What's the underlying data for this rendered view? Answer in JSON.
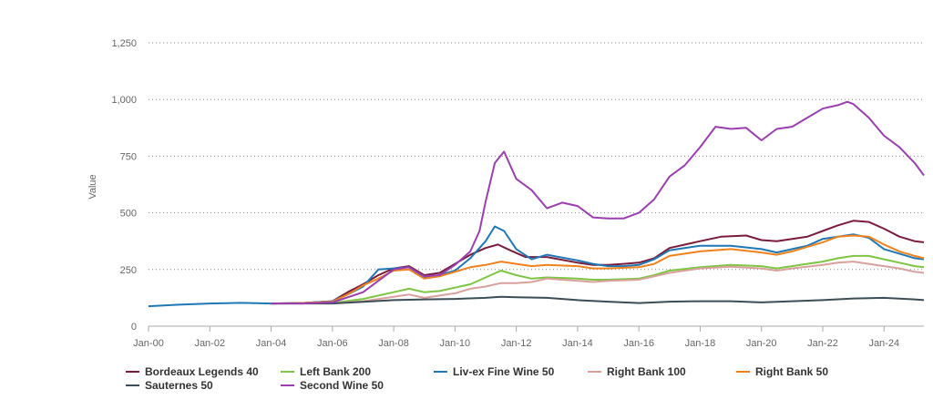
{
  "chart_data": {
    "type": "line",
    "ylabel": "Value",
    "xlabel": "",
    "ylim": [
      0,
      1250
    ],
    "yticks": [
      0,
      250,
      500,
      750,
      1000,
      1250
    ],
    "ytick_labels": [
      "0",
      "250",
      "500",
      "750",
      "1,000",
      "1,250"
    ],
    "xlim": [
      2000.0,
      2025.3
    ],
    "xticks": [
      2000,
      2002,
      2004,
      2006,
      2008,
      2010,
      2012,
      2014,
      2016,
      2018,
      2020,
      2022,
      2024
    ],
    "xtick_labels": [
      "Jan-00",
      "Jan-02",
      "Jan-04",
      "Jan-06",
      "Jan-08",
      "Jan-10",
      "Jan-12",
      "Jan-14",
      "Jan-16",
      "Jan-18",
      "Jan-20",
      "Jan-22",
      "Jan-24"
    ],
    "grid": "horizontal dotted",
    "legend_position": "bottom",
    "series": [
      {
        "name": "Bordeaux Legends 40",
        "color": "#7a1c3c",
        "x": [
          2004.0,
          2005.0,
          2006.0,
          2006.5,
          2007.0,
          2007.5,
          2008.0,
          2008.5,
          2009.0,
          2009.5,
          2010.0,
          2010.5,
          2011.0,
          2011.4,
          2011.8,
          2012.3,
          2013.0,
          2014.0,
          2014.5,
          2015.0,
          2015.5,
          2016.0,
          2016.5,
          2017.0,
          2018.0,
          2018.7,
          2019.5,
          2020.0,
          2020.5,
          2021.0,
          2021.5,
          2022.0,
          2022.5,
          2023.0,
          2023.5,
          2024.0,
          2024.5,
          2025.0,
          2025.3
        ],
        "y": [
          100,
          102,
          110,
          150,
          185,
          225,
          255,
          265,
          225,
          235,
          275,
          315,
          345,
          360,
          335,
          305,
          305,
          280,
          270,
          270,
          275,
          280,
          300,
          345,
          375,
          395,
          400,
          380,
          375,
          385,
          395,
          420,
          445,
          465,
          460,
          430,
          395,
          375,
          370
        ]
      },
      {
        "name": "Left Bank 200",
        "color": "#7dc542",
        "x": [
          2004.0,
          2005.0,
          2006.0,
          2007.0,
          2008.0,
          2008.5,
          2009.0,
          2009.5,
          2010.0,
          2010.5,
          2011.0,
          2011.5,
          2012.0,
          2012.5,
          2013.0,
          2014.0,
          2014.5,
          2015.0,
          2016.0,
          2016.5,
          2017.0,
          2018.0,
          2019.0,
          2020.0,
          2020.5,
          2021.0,
          2022.0,
          2022.5,
          2023.0,
          2023.5,
          2024.0,
          2024.5,
          2025.0,
          2025.3
        ],
        "y": [
          100,
          101,
          102,
          120,
          150,
          165,
          150,
          155,
          170,
          185,
          215,
          245,
          225,
          210,
          215,
          210,
          205,
          205,
          210,
          225,
          245,
          260,
          270,
          265,
          255,
          265,
          285,
          300,
          310,
          310,
          295,
          280,
          265,
          260
        ]
      },
      {
        "name": "Liv-ex Fine Wine 50",
        "color": "#1f77b4",
        "x": [
          2000.0,
          2001.0,
          2002.0,
          2003.0,
          2004.0,
          2005.0,
          2006.0,
          2006.5,
          2007.0,
          2007.5,
          2008.0,
          2008.5,
          2009.0,
          2009.5,
          2010.0,
          2010.5,
          2011.0,
          2011.3,
          2011.6,
          2012.0,
          2012.5,
          2013.0,
          2014.0,
          2014.5,
          2015.0,
          2015.5,
          2016.0,
          2016.5,
          2017.0,
          2018.0,
          2019.0,
          2020.0,
          2020.5,
          2021.0,
          2021.5,
          2022.0,
          2022.5,
          2023.0,
          2023.5,
          2024.0,
          2024.5,
          2025.0,
          2025.3
        ],
        "y": [
          88,
          95,
          100,
          103,
          100,
          102,
          110,
          140,
          175,
          250,
          255,
          260,
          215,
          225,
          245,
          300,
          375,
          440,
          420,
          340,
          295,
          315,
          290,
          275,
          265,
          265,
          270,
          295,
          335,
          355,
          355,
          340,
          325,
          340,
          355,
          385,
          395,
          405,
          390,
          340,
          320,
          300,
          295
        ]
      },
      {
        "name": "Right Bank 100",
        "color": "#d9a09d",
        "x": [
          2004.0,
          2005.0,
          2006.0,
          2007.0,
          2008.0,
          2008.5,
          2009.0,
          2009.5,
          2010.0,
          2010.5,
          2011.0,
          2011.5,
          2012.0,
          2012.5,
          2013.0,
          2014.0,
          2014.5,
          2015.0,
          2016.0,
          2016.5,
          2017.0,
          2018.0,
          2019.0,
          2020.0,
          2020.5,
          2021.0,
          2022.0,
          2022.5,
          2023.0,
          2023.5,
          2024.0,
          2024.5,
          2025.0,
          2025.3
        ],
        "y": [
          100,
          101,
          101,
          110,
          130,
          140,
          125,
          135,
          145,
          165,
          175,
          190,
          190,
          195,
          210,
          200,
          195,
          200,
          205,
          220,
          235,
          255,
          262,
          255,
          245,
          255,
          270,
          280,
          285,
          275,
          265,
          255,
          240,
          235
        ]
      },
      {
        "name": "Right Bank 50",
        "color": "#f0821e",
        "x": [
          2004.0,
          2005.0,
          2006.0,
          2006.5,
          2007.0,
          2007.5,
          2008.0,
          2008.5,
          2009.0,
          2009.5,
          2010.0,
          2010.5,
          2011.0,
          2011.5,
          2012.0,
          2012.5,
          2013.0,
          2014.0,
          2014.5,
          2015.0,
          2016.0,
          2016.5,
          2017.0,
          2018.0,
          2019.0,
          2020.0,
          2020.5,
          2021.0,
          2022.0,
          2022.5,
          2023.0,
          2023.5,
          2024.0,
          2024.5,
          2025.0,
          2025.3
        ],
        "y": [
          100,
          102,
          108,
          140,
          180,
          210,
          245,
          250,
          210,
          220,
          240,
          260,
          270,
          285,
          275,
          265,
          270,
          265,
          255,
          255,
          260,
          275,
          310,
          330,
          340,
          325,
          315,
          330,
          370,
          395,
          400,
          395,
          360,
          330,
          310,
          300
        ]
      },
      {
        "name": "Sauternes 50",
        "color": "#3b4e57",
        "x": [
          2004.0,
          2006.0,
          2008.0,
          2009.0,
          2010.0,
          2011.0,
          2011.5,
          2012.0,
          2013.0,
          2014.0,
          2015.0,
          2016.0,
          2016.5,
          2017.0,
          2018.0,
          2019.0,
          2020.0,
          2021.0,
          2022.0,
          2023.0,
          2024.0,
          2025.0,
          2025.3
        ],
        "y": [
          100,
          100,
          115,
          118,
          120,
          125,
          130,
          128,
          125,
          115,
          108,
          102,
          105,
          108,
          110,
          110,
          105,
          110,
          115,
          122,
          125,
          118,
          115
        ]
      },
      {
        "name": "Second Wine 50",
        "color": "#9b3fb0",
        "x": [
          2004.0,
          2005.0,
          2006.0,
          2007.0,
          2007.5,
          2008.0,
          2008.5,
          2009.0,
          2009.5,
          2010.0,
          2010.5,
          2010.8,
          2011.0,
          2011.3,
          2011.6,
          2012.0,
          2012.5,
          2013.0,
          2013.5,
          2014.0,
          2014.5,
          2015.0,
          2015.5,
          2016.0,
          2016.5,
          2017.0,
          2017.5,
          2018.0,
          2018.5,
          2019.0,
          2019.5,
          2020.0,
          2020.5,
          2021.0,
          2021.5,
          2022.0,
          2022.5,
          2022.8,
          2023.0,
          2023.5,
          2024.0,
          2024.5,
          2025.0,
          2025.3
        ],
        "y": [
          100,
          100,
          105,
          150,
          200,
          250,
          260,
          220,
          225,
          270,
          330,
          420,
          550,
          720,
          770,
          650,
          600,
          520,
          545,
          530,
          480,
          475,
          475,
          500,
          560,
          660,
          710,
          790,
          880,
          870,
          875,
          820,
          870,
          880,
          920,
          960,
          975,
          990,
          980,
          920,
          840,
          790,
          720,
          665
        ]
      }
    ]
  }
}
